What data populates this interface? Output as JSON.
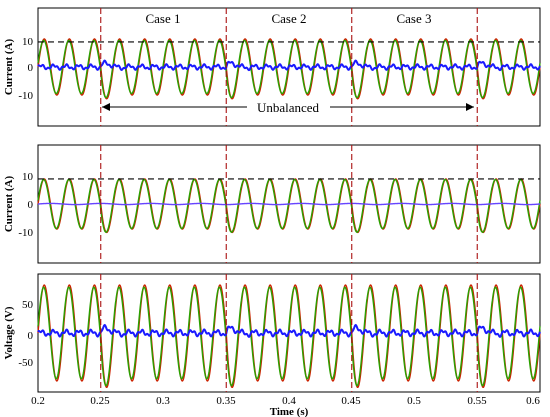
{
  "chart_data": [
    {
      "type": "line",
      "panel": "top",
      "ylabel": "Current (A)",
      "ylim": [
        -20,
        20
      ],
      "yticks": [
        -10,
        0,
        10
      ],
      "xlim": [
        0.2,
        0.6
      ],
      "reference_line": 8.5,
      "events_x": [
        0.25,
        0.35,
        0.45,
        0.55
      ],
      "case_labels": [
        "Case 1",
        "Case 2",
        "Case 3"
      ],
      "annotation": "Unbalanced",
      "series": [
        {
          "color": "#cc2200",
          "type": "sine",
          "amplitude": 9.5,
          "frequency_hz": 50
        },
        {
          "color": "#2aa000",
          "type": "sine",
          "amplitude": 9.0,
          "frequency_hz": 50
        },
        {
          "color": "#1a1aff",
          "type": "ripple",
          "amplitude": 1.0,
          "frequency_hz": 50
        }
      ]
    },
    {
      "type": "line",
      "panel": "middle",
      "ylabel": "Current (A)",
      "ylim": [
        -20,
        20
      ],
      "yticks": [
        -10,
        0,
        10
      ],
      "xlim": [
        0.2,
        0.6
      ],
      "reference_line": 8.5,
      "events_x": [
        0.25,
        0.35,
        0.45,
        0.55
      ],
      "series": [
        {
          "color": "#cc2200",
          "type": "sine",
          "amplitude": 8.5,
          "frequency_hz": 50
        },
        {
          "color": "#2aa000",
          "type": "sine",
          "amplitude": 8.3,
          "frequency_hz": 50
        },
        {
          "color": "#6644ff",
          "type": "flat",
          "amplitude": 0.2,
          "frequency_hz": 50
        }
      ]
    },
    {
      "type": "line",
      "panel": "bottom",
      "ylabel": "Voltage (V)",
      "ylim": [
        -80,
        80
      ],
      "yticks": [
        -50,
        0,
        50
      ],
      "xlim": [
        0.2,
        0.6
      ],
      "xlabel": "Time (s)",
      "xticks": [
        "0.2",
        "0.25",
        "0.3",
        "0.35",
        "0.4",
        "0.45",
        "0.5",
        "0.55",
        "0.6"
      ],
      "events_x": [
        0.25,
        0.35,
        0.45,
        0.55
      ],
      "series": [
        {
          "color": "#cc2200",
          "type": "sine",
          "amplitude": 65,
          "frequency_hz": 50
        },
        {
          "color": "#2aa000",
          "type": "sine",
          "amplitude": 62,
          "frequency_hz": 50
        },
        {
          "color": "#1a1aff",
          "type": "ripple",
          "amplitude": 5,
          "frequency_hz": 50
        }
      ]
    }
  ],
  "labels": {
    "top_ytick_10": "10",
    "top_ytick_0": "0",
    "top_ytick_m10": "-10",
    "mid_ytick_10": "10",
    "mid_ytick_0": "0",
    "mid_ytick_m10": "-10",
    "bot_ytick_50": "50",
    "bot_ytick_0": "0",
    "bot_ytick_m50": "-50",
    "top_ylabel": "Current (A)",
    "mid_ylabel": "Current (A)",
    "bot_ylabel": "Voltage (V)",
    "xlabel": "Time (s)",
    "case1": "Case 1",
    "case2": "Case 2",
    "case3": "Case 3",
    "unbalanced": "Unbalanced",
    "xt0": "0.2",
    "xt1": "0.25",
    "xt2": "0.3",
    "xt3": "0.35",
    "xt4": "0.4",
    "xt5": "0.45",
    "xt6": "0.5",
    "xt7": "0.55",
    "xt8": "0.6"
  }
}
